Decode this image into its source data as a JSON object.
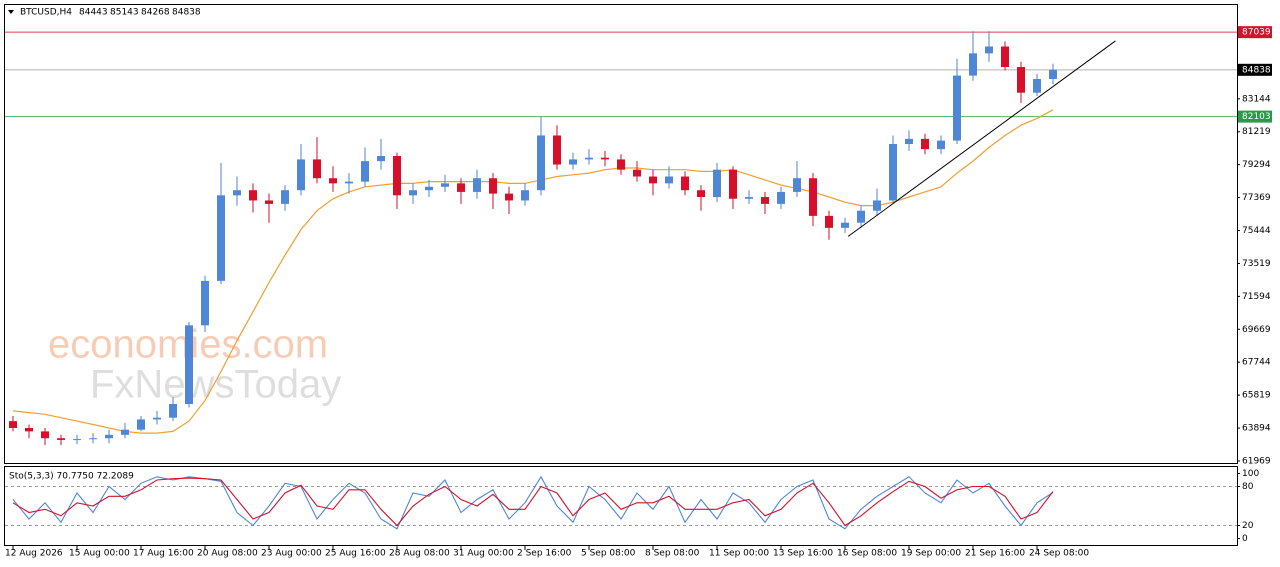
{
  "chart_data": [
    {
      "type": "candlestick",
      "symbol": "BTCUSD,H4",
      "ohlc": [
        84443,
        85143,
        84268,
        84838
      ],
      "watermark": [
        "economies.com",
        "FxNewsToday"
      ],
      "categories": [
        "12 Aug 2026",
        null,
        null,
        null,
        "15 Aug 00:00",
        null,
        null,
        null,
        "17 Aug 16:00",
        null,
        null,
        null,
        "20 Aug 08:00",
        null,
        null,
        null,
        "23 Aug 00:00",
        null,
        null,
        null,
        "25 Aug 16:00",
        null,
        null,
        null,
        "28 Aug 08:00",
        null,
        null,
        null,
        "31 Aug 00:00",
        null,
        null,
        null,
        "2 Sep 16:00",
        null,
        null,
        null,
        "5 Sep 08:00",
        null,
        null,
        null,
        "8 Sep 08:00",
        null,
        null,
        null,
        "11 Sep 00:00",
        null,
        null,
        null,
        "13 Sep 16:00",
        null,
        null,
        null,
        "16 Sep 08:00",
        null,
        null,
        null,
        "19 Sep 00:00",
        null,
        null,
        null,
        "21 Sep 16:00",
        null,
        null,
        null,
        "24 Sep 08:00",
        null
      ],
      "open": [
        64300,
        63900,
        63700,
        63300,
        63200,
        63250,
        63300,
        63500,
        63800,
        64400,
        64500,
        65300,
        69900,
        72500,
        77500,
        77800,
        77200,
        77000,
        77800,
        79600,
        78500,
        78200,
        78300,
        79500,
        79800,
        77500,
        77800,
        78000,
        78200,
        77700,
        78500,
        77600,
        77200,
        77800,
        81000,
        79300,
        79600,
        79700,
        79600,
        79000,
        78600,
        78200,
        78600,
        77800,
        77400,
        79000,
        77300,
        77400,
        77000,
        77700,
        78500,
        76300,
        75600,
        75900,
        76600,
        77200,
        80500,
        80800,
        80200,
        80700,
        84500,
        85800,
        86200,
        85000,
        83500,
        84300
      ],
      "high": [
        64600,
        64100,
        63900,
        63500,
        63500,
        63600,
        63800,
        64200,
        64600,
        64900,
        65700,
        70100,
        72800,
        79400,
        78600,
        78200,
        77600,
        78100,
        80500,
        80900,
        79200,
        78800,
        80300,
        80800,
        80000,
        78200,
        78400,
        78700,
        78500,
        79000,
        78800,
        78000,
        78200,
        82100,
        81600,
        80000,
        80200,
        80100,
        79900,
        79500,
        79000,
        79200,
        78900,
        78100,
        79400,
        79200,
        77800,
        77700,
        78000,
        79500,
        78800,
        76600,
        76200,
        76900,
        77900,
        81000,
        81300,
        81100,
        81000,
        85500,
        87100,
        87100,
        86500,
        85300,
        84600,
        85200
      ],
      "low": [
        63700,
        63300,
        62900,
        62900,
        62950,
        63000,
        63000,
        63300,
        63700,
        64100,
        64300,
        65100,
        69500,
        72300,
        76900,
        76500,
        75900,
        76600,
        77500,
        78200,
        77700,
        77600,
        78000,
        79000,
        76700,
        77000,
        77400,
        77700,
        77000,
        77300,
        76700,
        76400,
        76900,
        77500,
        79000,
        79000,
        79300,
        79200,
        78700,
        78300,
        77500,
        77900,
        77500,
        76600,
        77100,
        76700,
        77000,
        76400,
        76700,
        77400,
        75700,
        74900,
        75300,
        75600,
        76300,
        77000,
        80100,
        79900,
        79900,
        80500,
        84200,
        85300,
        84800,
        82900,
        83300,
        84000
      ],
      "close": [
        63900,
        63700,
        63300,
        63200,
        63250,
        63300,
        63500,
        63800,
        64400,
        64500,
        65300,
        69900,
        72500,
        77500,
        77800,
        77200,
        77000,
        77800,
        79600,
        78500,
        78200,
        78300,
        79500,
        79800,
        77500,
        77800,
        78000,
        78200,
        77700,
        78500,
        77600,
        77200,
        77800,
        81000,
        79300,
        79600,
        79700,
        79600,
        79000,
        78600,
        78200,
        78600,
        77800,
        77400,
        79000,
        77300,
        77400,
        77000,
        77700,
        78500,
        76300,
        75600,
        75900,
        76600,
        77200,
        80500,
        80800,
        80200,
        80700,
        84500,
        85800,
        86200,
        85000,
        83500,
        84300,
        84838
      ],
      "up_color": "#4f86d6",
      "down_color": "#d6102a",
      "ma": {
        "color": "#f0a030",
        "values": [
          64900,
          64800,
          64700,
          64500,
          64300,
          64100,
          63900,
          63700,
          63600,
          63600,
          63700,
          64300,
          65500,
          67200,
          69000,
          70700,
          72400,
          74000,
          75500,
          76600,
          77300,
          77700,
          78000,
          78100,
          78200,
          78200,
          78300,
          78300,
          78300,
          78300,
          78300,
          78200,
          78200,
          78400,
          78600,
          78700,
          78800,
          79000,
          79100,
          79100,
          79000,
          79000,
          79000,
          78900,
          78900,
          79000,
          78700,
          78400,
          78100,
          77900,
          77700,
          77400,
          77100,
          76900,
          76900,
          77100,
          77400,
          77700,
          78000,
          78800,
          79500,
          80300,
          81000,
          81600,
          82000,
          82500
        ]
      },
      "trendline": {
        "x": [
          52.2,
          68.9
        ],
        "y": [
          75100,
          86527
        ],
        "color": "#000000"
      },
      "levels": [
        {
          "value": 87039,
          "color": "#d6102a"
        },
        {
          "value": 84838,
          "color": "#000000"
        },
        {
          "value": 82103,
          "color": "#2a9a4a"
        }
      ],
      "xlim": [
        -0.5,
        76.5
      ],
      "ylim": [
        61852,
        88627
      ],
      "yticks": [
        61969,
        63894,
        65819,
        67744,
        69669,
        71594,
        73519,
        75444,
        77369,
        79294,
        81219,
        83144
      ]
    },
    {
      "type": "line",
      "title": "Sto(5,3,3) 70.7750 72.2089",
      "series": [
        {
          "color": "#4f86d6",
          "values": [
            60,
            30,
            55,
            25,
            70,
            40,
            80,
            60,
            85,
            95,
            90,
            95,
            92,
            88,
            40,
            20,
            50,
            85,
            80,
            30,
            60,
            85,
            70,
            30,
            15,
            70,
            65,
            90,
            40,
            60,
            75,
            30,
            55,
            95,
            50,
            25,
            80,
            60,
            30,
            70,
            45,
            80,
            25,
            60,
            30,
            70,
            55,
            25,
            60,
            80,
            90,
            30,
            15,
            45,
            65,
            80,
            95,
            70,
            55,
            90,
            70,
            85,
            50,
            20,
            55,
            70.775
          ]
        },
        {
          "color": "#d6102a",
          "values": [
            55,
            40,
            45,
            35,
            55,
            50,
            65,
            65,
            75,
            90,
            92,
            93,
            92,
            90,
            60,
            30,
            40,
            70,
            82,
            50,
            45,
            75,
            75,
            45,
            20,
            50,
            68,
            80,
            60,
            50,
            68,
            45,
            45,
            80,
            70,
            35,
            60,
            70,
            45,
            55,
            55,
            65,
            45,
            45,
            45,
            55,
            60,
            35,
            45,
            70,
            85,
            55,
            20,
            35,
            55,
            72,
            88,
            80,
            62,
            75,
            80,
            80,
            65,
            30,
            40,
            72.2089
          ]
        }
      ],
      "levels": [
        20,
        80
      ],
      "xlim": [
        -0.5,
        76.5
      ],
      "ylim": [
        -10,
        110
      ],
      "yticks": [
        0,
        20,
        80,
        100
      ]
    }
  ]
}
